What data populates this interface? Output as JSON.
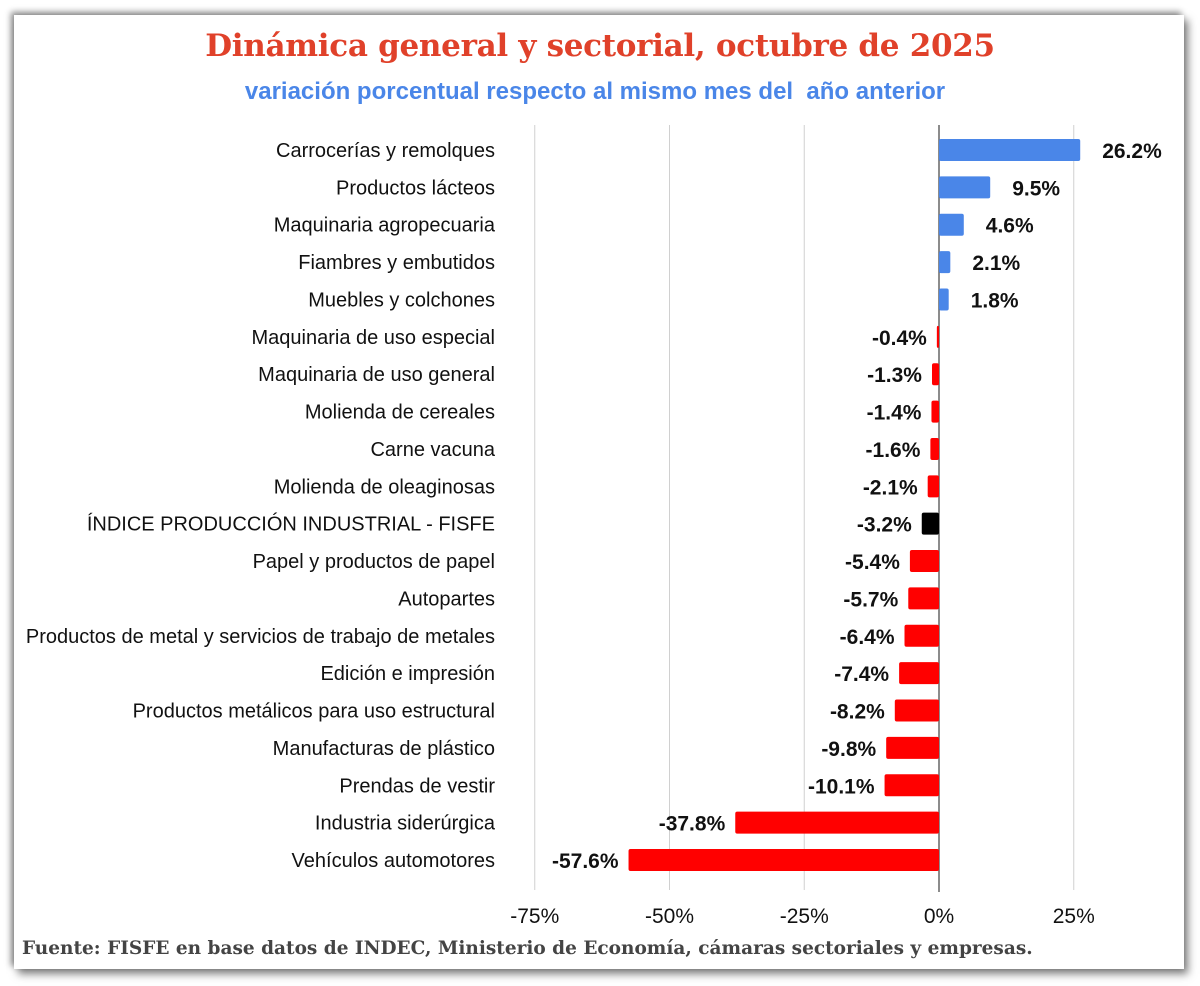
{
  "chart_data": {
    "type": "bar",
    "orientation": "horizontal",
    "title": "Dinámica general y sectorial, octubre de 2025",
    "subtitle": "variación porcentual respecto al mismo mes del  año anterior",
    "categories": [
      "Carrocerías y remolques",
      "Productos lácteos",
      "Maquinaria agropecuaria",
      "Fiambres y embutidos",
      "Muebles y colchones",
      "Maquinaria de uso especial",
      "Maquinaria de uso general",
      "Molienda de cereales",
      "Carne vacuna",
      "Molienda de oleaginosas",
      "ÍNDICE PRODUCCIÓN INDUSTRIAL - FISFE",
      "Papel y productos de papel",
      "Autopartes",
      "Productos de metal y servicios de trabajo de metales",
      "Edición e impresión",
      "Productos metálicos para uso estructural",
      "Manufacturas de plástico",
      "Prendas de vestir",
      "Industria siderúrgica",
      "Vehículos automotores"
    ],
    "values": [
      26.2,
      9.5,
      4.6,
      2.1,
      1.8,
      -0.4,
      -1.3,
      -1.4,
      -1.6,
      -2.1,
      -3.2,
      -5.4,
      -5.7,
      -6.4,
      -7.4,
      -8.2,
      -9.8,
      -10.1,
      -37.8,
      -57.6
    ],
    "data_labels": [
      "26.2%",
      "9.5%",
      "4.6%",
      "2.1%",
      "1.8%",
      "-0.4%",
      "-1.3%",
      "-1.4%",
      "-1.6%",
      "-2.1%",
      "-3.2%",
      "-5.4%",
      "-5.7%",
      "-6.4%",
      "-7.4%",
      "-8.2%",
      "-9.8%",
      "-10.1%",
      "-37.8%",
      "-57.6%"
    ],
    "highlight_category": "ÍNDICE PRODUCCIÓN INDUSTRIAL - FISFE",
    "xlim": [
      -80,
      30
    ],
    "xticks": [
      -75,
      -50,
      -25,
      0,
      25
    ],
    "xtick_labels": [
      "-75%",
      "-50%",
      "-25%",
      "0%",
      "25%"
    ],
    "grid": "vertical",
    "colors": {
      "positive": "#4a86e8",
      "negative": "#ff0000",
      "highlight": "#000000"
    }
  },
  "source": "Fuente: FISFE en base datos de INDEC, Ministerio de Economía, cámaras sectoriales y empresas."
}
